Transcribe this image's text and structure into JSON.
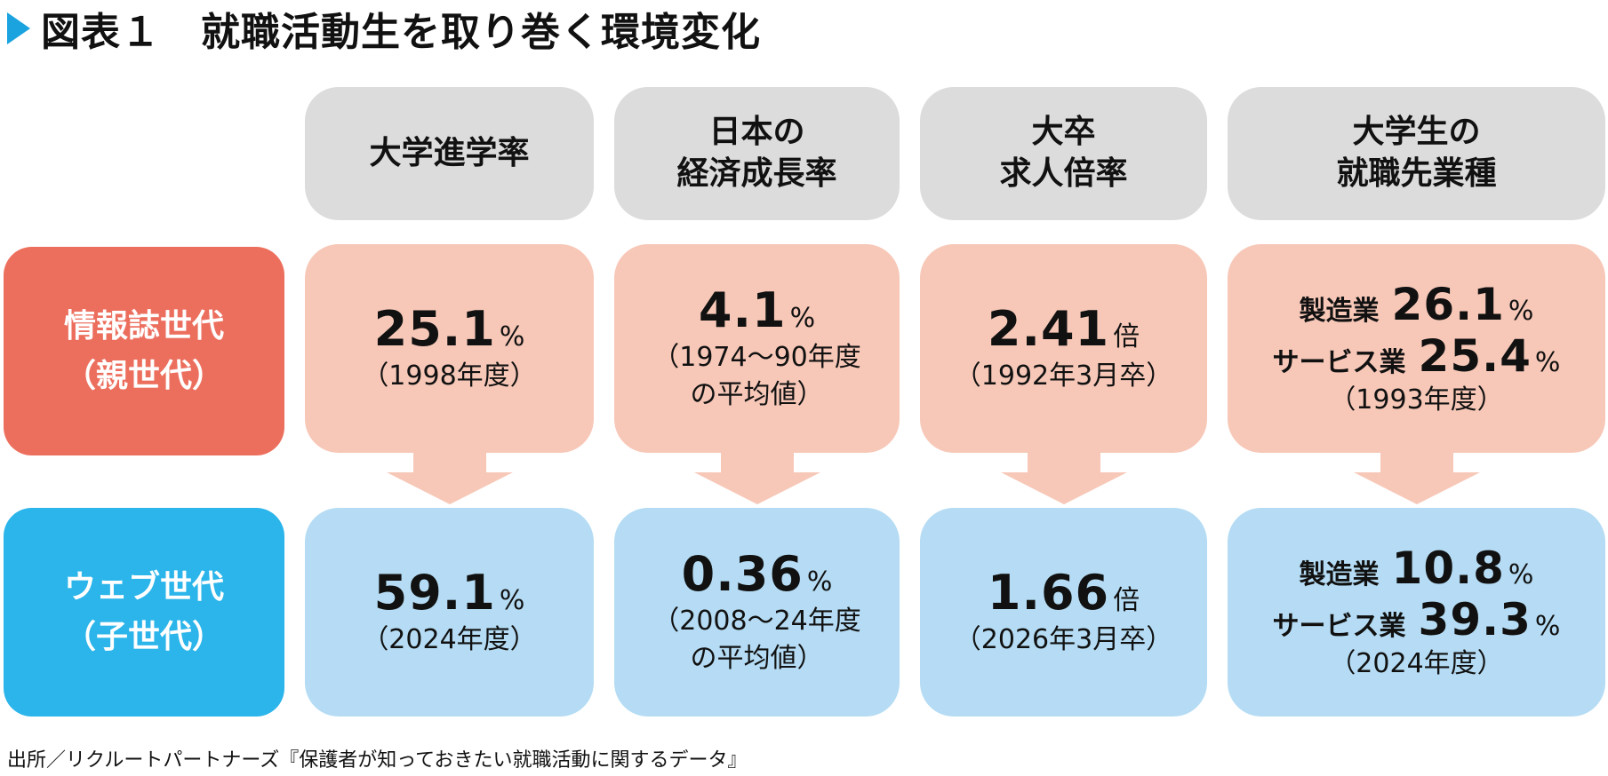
{
  "title": "図表１　就職活動生を取り巻く環境変化",
  "headers": [
    "大学進学率",
    "日本の\n経済成長率",
    "大卒\n求人倍率",
    "大学生の\n就職先業種"
  ],
  "rows": [
    {
      "label_line1": "情報誌世代",
      "label_line2": "（親世代）"
    },
    {
      "label_line1": "ウェブ世代",
      "label_line2": "（子世代）"
    }
  ],
  "parent": {
    "col1": {
      "value": "25.1",
      "unit": "%",
      "note": "（1998年度）"
    },
    "col2": {
      "value": "4.1",
      "unit": "%",
      "note_line1": "（1974～90年度",
      "note_line2": "の平均値）"
    },
    "col3": {
      "value": "2.41",
      "unit": "倍",
      "note": "（1992年3月卒）"
    },
    "col4": {
      "mfg_label": "製造業",
      "mfg_value": "26.1",
      "mfg_unit": "%",
      "svc_label": "サービス業",
      "svc_value": "25.4",
      "svc_unit": "%",
      "note": "（1993年度）"
    }
  },
  "child": {
    "col1": {
      "value": "59.1",
      "unit": "%",
      "note": "（2024年度）"
    },
    "col2": {
      "value": "0.36",
      "unit": "%",
      "note_line1": "（2008～24年度",
      "note_line2": "の平均値）"
    },
    "col3": {
      "value": "1.66",
      "unit": "倍",
      "note": "（2026年3月卒）"
    },
    "col4": {
      "mfg_label": "製造業",
      "mfg_value": "10.8",
      "mfg_unit": "%",
      "svc_label": "サービス業",
      "svc_value": "39.3",
      "svc_unit": "%",
      "note": "（2024年度）"
    }
  },
  "source": "出所／リクルートパートナーズ『保護者が知っておきたい就職活動に関するデータ』",
  "colors": {
    "title_marker": "#1aa3df",
    "parent_label": "#ec6f5e",
    "child_label": "#2bb5ea",
    "parent_cell": "#f7c8b8",
    "child_cell": "#b5dcf4",
    "header_cell": "#dcdcdc"
  }
}
